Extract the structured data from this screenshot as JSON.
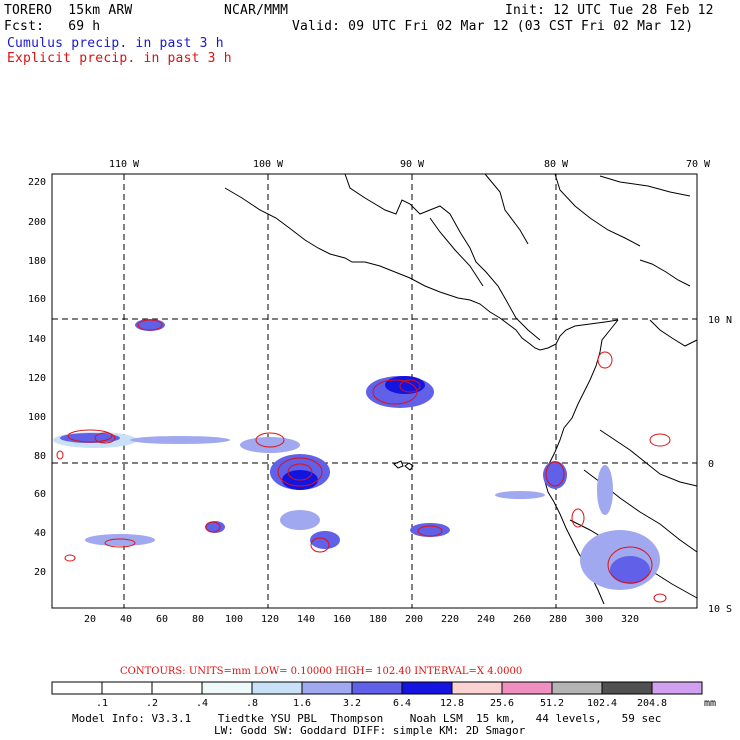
{
  "header": {
    "model": "TORERO  15km ARW",
    "org": "NCAR/MMM",
    "init": "Init: 12 UTC Tue 28 Feb 12",
    "fcst": "Fcst:   69 h",
    "valid": "Valid: 09 UTC Fri 02 Mar 12 (03 CST Fri 02 Mar 12)",
    "cumulus": "Cumulus precip. in past 3 h",
    "explicit": "Explicit precip. in past 3 h"
  },
  "axes": {
    "lon_labels": [
      "110 W",
      "100 W",
      "90 W",
      "80 W",
      "70 W"
    ],
    "lat_labels": [
      "10 N",
      "0",
      "10 S"
    ],
    "y_ticks": [
      "220",
      "200",
      "180",
      "160",
      "140",
      "120",
      "100",
      "80",
      "60",
      "40",
      "20"
    ],
    "x_ticks": [
      "20",
      "40",
      "60",
      "80",
      "100",
      "120",
      "140",
      "160",
      "180",
      "200",
      "220",
      "240",
      "260",
      "280",
      "300",
      "320"
    ]
  },
  "contour_info": {
    "label": "CONTOURS:  UNITS=mm  LOW= 0.10000       HIGH=  102.40      INTERVAL=X  4.0000"
  },
  "colorbar": {
    "labels": [
      ".1",
      ".2",
      ".4",
      ".8",
      "1.6",
      "3.2",
      "6.4",
      "12.8",
      "25.6",
      "51.2",
      "102.4",
      "204.8"
    ],
    "unit": "mm",
    "colors": [
      "#ffffff",
      "#ffffff",
      "#ffffff",
      "#eefafa",
      "#c8e0f8",
      "#a0a8f0",
      "#6060e8",
      "#1414e0",
      "#fbd2d2",
      "#f090c0",
      "#b4b4b4",
      "#505050",
      "#d2a0f0"
    ]
  },
  "footer": {
    "line1": "Model Info: V3.3.1    Tiedtke YSU PBL  Thompson    Noah LSM  15 km,   44 levels,   59 sec",
    "line2": "LW: Godd SW: Goddard DIFF: simple KM: 2D Smagor"
  },
  "colors": {
    "cumulus_text": "#1a1acd",
    "explicit_text": "#e01010",
    "contour_red": "#e01010"
  }
}
